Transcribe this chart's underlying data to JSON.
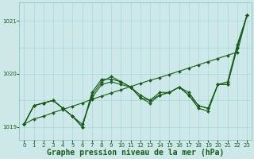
{
  "background_color": "#cce8e8",
  "grid_color": "#aad4d4",
  "line_color": "#1a5c1a",
  "title": "Graphe pression niveau de la mer (hPa)",
  "xlim": [
    -0.5,
    23.5
  ],
  "ylim": [
    1018.75,
    1021.35
  ],
  "yticks": [
    1019,
    1020,
    1021
  ],
  "xticks": [
    0,
    1,
    2,
    3,
    4,
    5,
    6,
    7,
    8,
    9,
    10,
    11,
    12,
    13,
    14,
    15,
    16,
    17,
    18,
    19,
    20,
    21,
    22,
    23
  ],
  "title_fontsize": 7.0,
  "tick_fontsize": 5.0,
  "series": [
    [
      1019.05,
      1019.4,
      1019.45,
      1019.5,
      1019.35,
      1019.2,
      1019.0,
      1019.6,
      1019.85,
      1019.95,
      1019.85,
      1019.75,
      1019.6,
      1019.5,
      1019.65,
      1019.65,
      1019.75,
      1019.65,
      1019.4,
      1019.35,
      1019.8,
      1019.85,
      1020.55,
      1021.1
    ],
    [
      1019.05,
      1019.4,
      1019.45,
      1019.5,
      1019.35,
      1019.2,
      1019.0,
      1019.65,
      1019.9,
      1019.9,
      1019.85,
      1019.75,
      1019.55,
      1019.45,
      1019.6,
      1019.65,
      1019.75,
      1019.6,
      1019.35,
      1019.3,
      1019.8,
      1019.8,
      1020.5,
      1021.1
    ],
    [
      1019.05,
      1019.4,
      1019.45,
      1019.5,
      1019.35,
      1019.2,
      1019.05,
      1019.55,
      1019.8,
      1019.85,
      1019.8,
      1019.75,
      1019.55,
      1019.5,
      1019.6,
      1019.65,
      1019.75,
      1019.6,
      1019.4,
      1019.35,
      1019.8,
      1019.8,
      1020.5,
      1021.1
    ],
    [
      1019.05,
      1019.15,
      1019.2,
      1019.27,
      1019.33,
      1019.39,
      1019.45,
      1019.52,
      1019.58,
      1019.64,
      1019.7,
      1019.76,
      1019.82,
      1019.88,
      1019.93,
      1019.99,
      1020.05,
      1020.11,
      1020.17,
      1020.23,
      1020.29,
      1020.35,
      1020.41,
      1021.1
    ]
  ]
}
